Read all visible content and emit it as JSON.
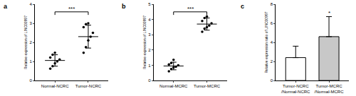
{
  "chart_data": [
    {
      "type": "dot",
      "label": "a",
      "ylabel": "Relative expression of LINC00997",
      "categories": [
        "Normal-NCRC",
        "Tumor-NCRC"
      ],
      "points": [
        [
          0.62,
          0.75,
          0.9,
          1.0,
          1.1,
          1.2,
          1.35,
          1.45
        ],
        [
          1.45,
          1.75,
          2.1,
          2.3,
          2.5,
          2.8,
          2.95,
          3.0
        ]
      ],
      "means": [
        1.05,
        2.3
      ],
      "sd": [
        0.3,
        0.6
      ],
      "color": "#000000",
      "annotations": [
        {
          "text": "***",
          "categories": [
            "Normal-NCRC",
            "Tumor-NCRC"
          ]
        }
      ],
      "ylim": [
        0,
        4
      ],
      "yticks": [
        0,
        1,
        2,
        3,
        4
      ]
    },
    {
      "type": "dot",
      "label": "b",
      "ylabel": "Relative expression of LINC00997",
      "categories": [
        "Normal-MCRC",
        "Tumor-MCRC"
      ],
      "points": [
        [
          0.6,
          0.75,
          0.85,
          0.9,
          1.0,
          1.05,
          1.15,
          1.35
        ],
        [
          3.2,
          3.4,
          3.5,
          3.6,
          3.75,
          3.9,
          4.1,
          4.2
        ]
      ],
      "means": [
        0.95,
        3.7
      ],
      "sd": [
        0.25,
        0.4
      ],
      "color": "#000000",
      "annotations": [
        {
          "text": "***",
          "categories": [
            "Normal-MCRC",
            "Tumor-MCRC"
          ]
        }
      ],
      "ylim": [
        0,
        5
      ],
      "yticks": [
        0,
        1,
        2,
        3,
        4,
        5
      ]
    },
    {
      "type": "bar",
      "label": "c",
      "ylabel": "Relative expression ratio of LINC00997",
      "categories": [
        "Tumor-NCRC /Normal-NCRC",
        "Tumor-MCRC /Normal-MCRC"
      ],
      "values": [
        2.4,
        4.6
      ],
      "errors": [
        1.2,
        2.1
      ],
      "colors": [
        "#ffffff",
        "#c8c8c8"
      ],
      "annotations": [
        {
          "text": "*",
          "category": "Tumor-MCRC /Normal-MCRC"
        }
      ],
      "ylim": [
        0,
        8
      ],
      "yticks": [
        0,
        2,
        4,
        6,
        8
      ]
    }
  ]
}
